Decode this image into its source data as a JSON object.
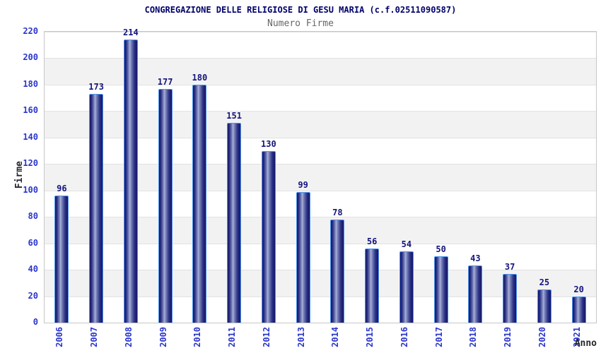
{
  "chart_data": {
    "type": "bar",
    "title": "CONGREGAZIONE DELLE RELIGIOSE DI GESU MARIA (c.f.02511090587)",
    "subtitle": "Numero Firme",
    "xlabel": "Anno",
    "ylabel": "Firme",
    "categories": [
      "2006",
      "2007",
      "2008",
      "2009",
      "2010",
      "2011",
      "2012",
      "2013",
      "2014",
      "2015",
      "2016",
      "2017",
      "2018",
      "2019",
      "2020",
      "2021"
    ],
    "values": [
      96,
      173,
      214,
      177,
      180,
      151,
      130,
      99,
      78,
      56,
      54,
      50,
      43,
      37,
      25,
      20
    ],
    "ylim": [
      0,
      220
    ],
    "ytick_step": 20,
    "grid": true,
    "legend": "none",
    "bands_alternating": true,
    "colors": {
      "title": "#00006b",
      "subtitle": "#666666",
      "value_labels": "#14147d",
      "tick_labels": "#2a35cc",
      "axis_titles": "#26262e",
      "bar_dark": "#14146a",
      "bar_highlight": "#a9b1d8",
      "bar_border": "#4d94f0",
      "band_gray": "#f2f2f2",
      "gridline": "#e2e2e2",
      "plot_border": "#c6c6c6"
    }
  }
}
